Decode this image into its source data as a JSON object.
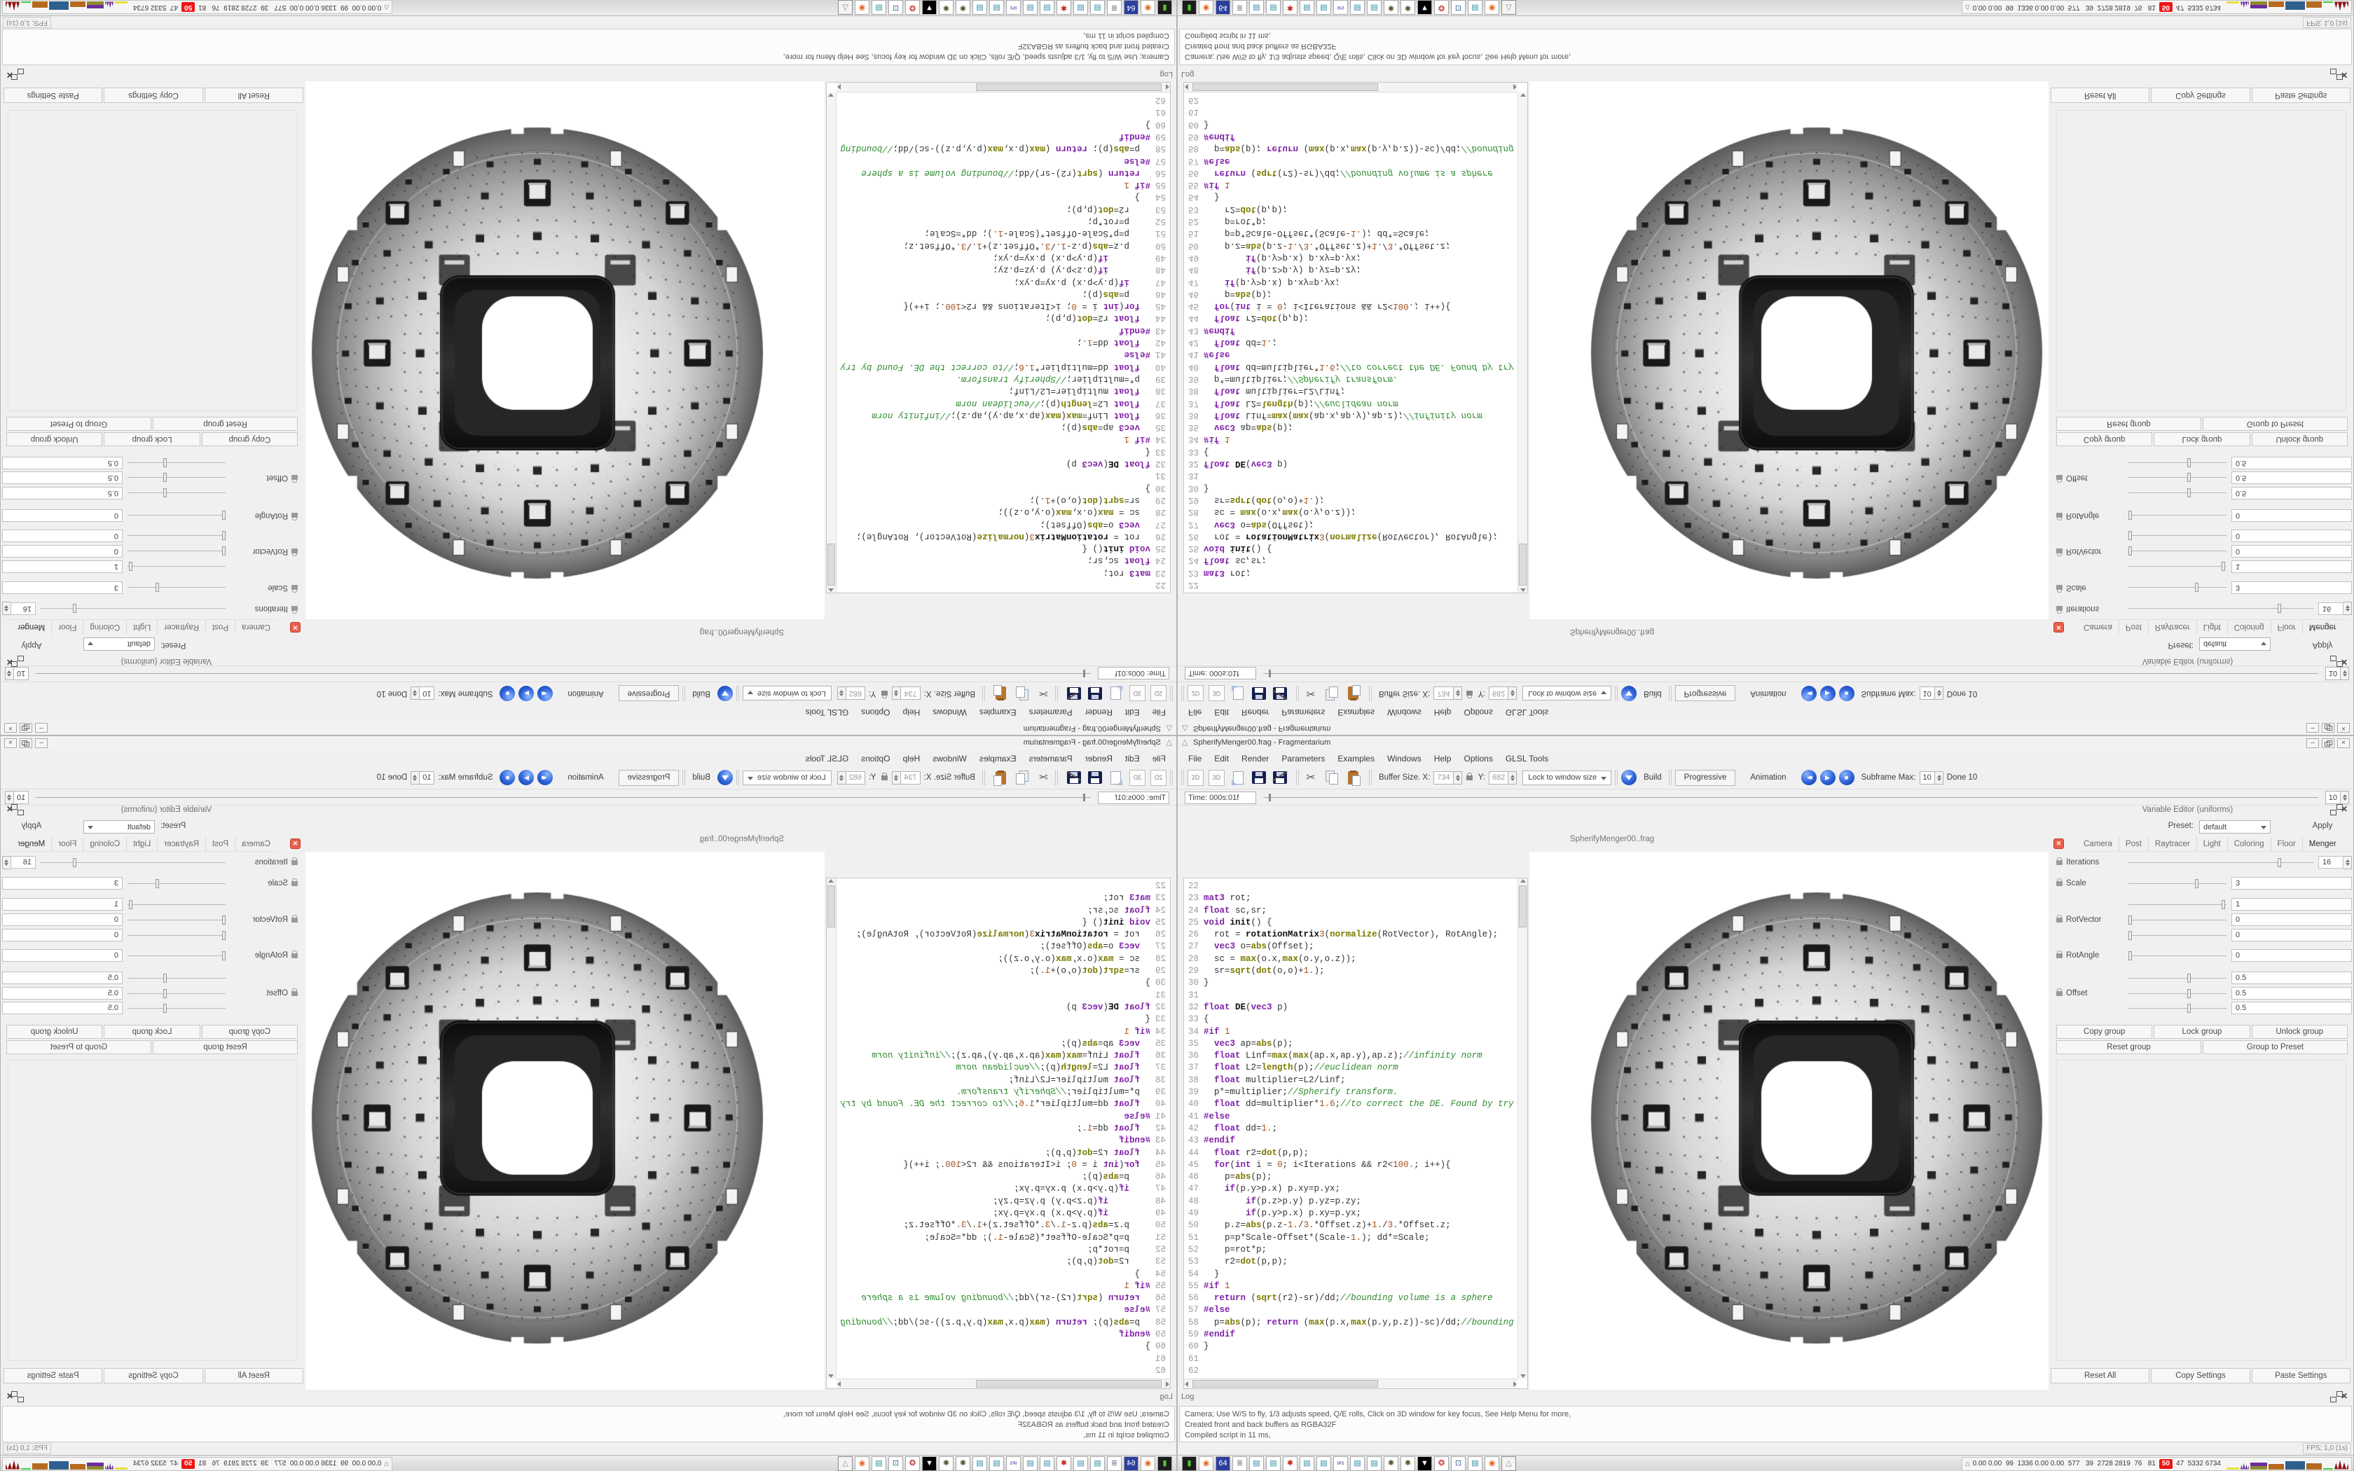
{
  "window": {
    "title": "SpherifyMenger00.frag - Fragmentarium",
    "logo_glyph": "△",
    "controls": [
      {
        "name": "minimize",
        "glyph": "–"
      },
      {
        "name": "restore",
        "glyph": ""
      },
      {
        "name": "close",
        "glyph": "×"
      }
    ],
    "panel_controls": [
      {
        "name": "float",
        "glyph": ""
      },
      {
        "name": "close",
        "glyph": "✕"
      }
    ]
  },
  "menu": {
    "items": [
      "File",
      "Edit",
      "Render",
      "Parameters",
      "Examples",
      "Windows",
      "Help",
      "Options",
      "GLSL Tools"
    ]
  },
  "toolbar": {
    "mode_2d": "2D",
    "mode_3d": "3D",
    "buffer_size_label": "Buffer Size. X:",
    "buffer_x": "734",
    "y_label": "Y:",
    "buffer_y": "682",
    "lock_combo": "Lock to window size",
    "build": "Build",
    "progressive": "Progressive",
    "animation": "Animation",
    "rewind_glyph": "◀◀",
    "play_glyph": "▶",
    "stop_glyph": "■",
    "subframe_label": "Subframe Max:",
    "subframe_value": "10",
    "done_label": "Done 10"
  },
  "timebar": {
    "label": "Time: 000s:01f",
    "value": "10"
  },
  "editor": {
    "tab": "SpherifyMenger00..frag",
    "first_line": 22,
    "lines": [
      "",
      "mat3 rot;",
      "float sc,sr;",
      "void init() {",
      "  rot = rotationMatrix3(normalize(RotVector), RotAngle);",
      "  vec3 o=abs(Offset);",
      "  sc = max(o.x,max(o.y,o.z));",
      "  sr=sqrt(dot(o,o)+1.);",
      "}",
      "",
      "float DE(vec3 p)",
      "{",
      "#if 1",
      "  vec3 ap=abs(p);",
      "  float Linf=max(max(ap.x,ap.y),ap.z);//infinity norm",
      "  float L2=length(p);//euclidean norm",
      "  float multiplier=L2/Linf;",
      "  p*=multiplier;//Spherify transform.",
      "  float dd=multiplier*1.6;//to correct the DE. Found by try",
      "#else",
      "  float dd=1.;",
      "#endif",
      "  float r2=dot(p,p);",
      "  for(int i = 0; i<Iterations && r2<100.; i++){",
      "    p=abs(p);",
      "    if(p.y>p.x) p.xy=p.yx;",
      "        if(p.z>p.y) p.yz=p.zy;",
      "        if(p.y>p.x) p.xy=p.yx;",
      "    p.z=abs(p.z-1./3.*Offset.z)+1./3.*Offset.z;",
      "    p=p*Scale-Offset*(Scale-1.); dd*=Scale;",
      "    p=rot*p;",
      "    r2=dot(p,p);",
      "  }",
      "#if 1",
      "  return (sqrt(r2)-sr)/dd;//bounding volume is a sphere",
      "#else",
      "  p=abs(p); return (max(p.x,max(p.y,p.z))-sc)/dd;//bounding",
      "#endif",
      "}",
      "",
      ""
    ]
  },
  "variable_editor": {
    "title": "Variable Editor (uniforms)",
    "preset_label": "Preset:",
    "preset_value": "default",
    "apply_label": "Apply",
    "close_glyph": "✕",
    "tabs": [
      "Camera",
      "Post",
      "Raytracer",
      "Light",
      "Coloring",
      "Floor",
      "Menger"
    ],
    "active_tab": "Menger",
    "rows": [
      {
        "label": "Iterations",
        "value": "16",
        "locked": true,
        "spin": true,
        "handle": 0.82
      },
      {
        "label": "Scale",
        "value": "3",
        "locked": true,
        "handle": 0.7
      },
      {
        "label": "",
        "value": "1",
        "handle": 0.97
      },
      {
        "label": "RotVector",
        "value": "0",
        "locked": true,
        "handle": 0.02
      },
      {
        "label": "",
        "value": "0",
        "handle": 0.02
      },
      {
        "label": "RotAngle",
        "value": "0",
        "locked": true,
        "handle": 0.02
      },
      {
        "label": "",
        "value": "0.5",
        "handle": 0.62
      },
      {
        "label": "Offset",
        "value": "0.5",
        "locked": true,
        "handle": 0.62
      },
      {
        "label": "",
        "value": "0.5",
        "handle": 0.62
      }
    ],
    "group_buttons": [
      "Copy group",
      "Lock group",
      "Unlock group"
    ],
    "group_buttons_row2": [
      "Reset group",
      "Group to Preset"
    ],
    "bottom_buttons": [
      "Reset All",
      "Copy Settings",
      "Paste Settings"
    ]
  },
  "log": {
    "title": "Log",
    "lines": [
      "Camera; Use W/S to fly, 1/3 adjusts speed, Q/E rolls, Click on 3D window for key focus, See Help Menu for more,",
      "Created front and back buffers as RGBA32F",
      "Compiled script in 11 ms,"
    ],
    "fps": "FPS; 1,0 (1s)"
  },
  "taskbar": {
    "icons": [
      {
        "name": "terminal-icon",
        "glyph": "▮",
        "fg": "#55c832",
        "bg": "#1c1c1c"
      },
      {
        "name": "firefox-icon",
        "glyph": "◉",
        "fg": "#e8641b",
        "bg": "#ffffff"
      },
      {
        "name": "floppy64-icon",
        "glyph": "64",
        "fg": "#ffffff",
        "bg": "#2c3e9e"
      },
      {
        "name": "scroll-icon",
        "glyph": "≣",
        "fg": "#6b7f95",
        "bg": "#ffffff"
      },
      {
        "name": "notepad-icon",
        "glyph": "▤",
        "fg": "#2e8fa3",
        "bg": "#ffffff"
      },
      {
        "name": "notepad-icon",
        "glyph": "▤",
        "fg": "#2e8fa3",
        "bg": "#ffffff"
      },
      {
        "name": "splat-icon",
        "glyph": "✱",
        "fg": "#c22718",
        "bg": "#ffffff"
      },
      {
        "name": "notepad-icon",
        "glyph": "▤",
        "fg": "#2e8fa3",
        "bg": "#ffffff"
      },
      {
        "name": "notepad-icon",
        "glyph": "▤",
        "fg": "#2e8fa3",
        "bg": "#ffffff"
      },
      {
        "name": "ips-doc-icon",
        "glyph": "IPS",
        "fg": "#1d2f9e",
        "bg": "#ffffff"
      },
      {
        "name": "notepad-icon",
        "glyph": "▤",
        "fg": "#2e8fa3",
        "bg": "#ffffff"
      },
      {
        "name": "notepad-icon",
        "glyph": "▤",
        "fg": "#2e8fa3",
        "bg": "#ffffff"
      },
      {
        "name": "fractal-disc-icon",
        "glyph": "✺",
        "fg": "#55512c",
        "bg": "#ffffff"
      },
      {
        "name": "fractal-disc-icon",
        "glyph": "✺",
        "fg": "#55512c",
        "bg": "#ffffff"
      },
      {
        "name": "bw-logo-icon",
        "glyph": "▼",
        "fg": "#ffffff",
        "bg": "#000000"
      },
      {
        "name": "red-medallion-icon",
        "glyph": "❂",
        "fg": "#c01818",
        "bg": "#ffffff"
      },
      {
        "name": "remote-desktop-icon",
        "glyph": "⊡",
        "fg": "#3a5a8c",
        "bg": "#ffffff"
      },
      {
        "name": "notepad-icon",
        "glyph": "▤",
        "fg": "#2e8fa3",
        "bg": "#ffffff"
      },
      {
        "name": "firefox-icon",
        "glyph": "◉",
        "fg": "#e8641b",
        "bg": "#ffffff"
      },
      {
        "name": "fragmentarium-logo-icon",
        "glyph": "△",
        "fg": "#8a8a8a",
        "bg": "#f4f4f4",
        "active": true
      }
    ],
    "tray_icon_glyph": "⌂",
    "tray_values": "0.00 0.00  99  1336 0.00 0.00  577   39  2728 2819  76   81",
    "tray_badge": "50",
    "tray_values2": "47  5332 6734",
    "tray_graphs": [
      {
        "name": "yellow-line-graph",
        "color": "#e6df3e",
        "w": 18,
        "h": 3,
        "shape": "bar"
      },
      {
        "name": "purple-peaks-graph",
        "color": "#6b2d9e",
        "w": 12,
        "h": 9,
        "shape": "peaks"
      },
      {
        "name": "olive-block-graph",
        "color": "#8e8a2f",
        "w": 24,
        "h": 10,
        "cap": "#6b2d9e",
        "shape": "bar"
      },
      {
        "name": "orange-block-graph",
        "color": "#b56a1e",
        "w": 22,
        "h": 8,
        "shape": "bar"
      },
      {
        "name": "blue-block-graph",
        "color": "#2f5f8e",
        "w": 28,
        "h": 12,
        "shape": "bar"
      },
      {
        "name": "orange-block-graph",
        "color": "#b56a1e",
        "w": 22,
        "h": 9,
        "shape": "bar"
      },
      {
        "name": "green-line-graph",
        "color": "#3fcf3f",
        "w": 14,
        "h": 2,
        "shape": "bar"
      },
      {
        "name": "red-peaks-graph",
        "color": "#8e1414",
        "w": 20,
        "h": 13,
        "shape": "peaks"
      }
    ]
  }
}
